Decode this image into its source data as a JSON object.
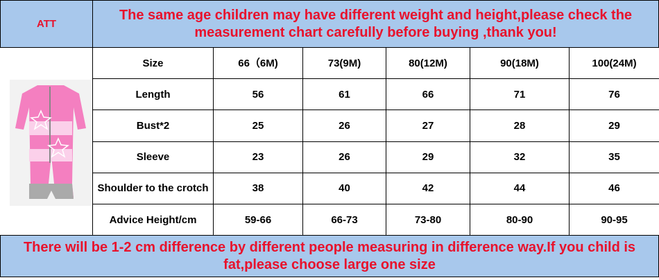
{
  "header": {
    "code": "ATT",
    "notice": "The same age children may have different weight and height,please check the measurement chart carefully before buying ,thank you!"
  },
  "table": {
    "columns": [
      "Size",
      "66（6M)",
      "73(9M)",
      "80(12M)",
      "90(18M)",
      "100(24M)"
    ],
    "rows": [
      [
        "Length",
        56,
        61,
        66,
        71,
        76
      ],
      [
        "Bust*2",
        25,
        26,
        27,
        28,
        29
      ],
      [
        "Sleeve",
        23,
        26,
        29,
        32,
        35
      ],
      [
        "Shoulder to the crotch",
        38,
        40,
        42,
        44,
        46
      ],
      [
        "Advice Height/cm",
        "59-66",
        "66-73",
        "73-80",
        "80-90",
        "90-95"
      ]
    ]
  },
  "footer": {
    "notice": "There will be 1-2 cm difference by different people measuring in difference way.If you child is fat,please choose large one size"
  }
}
